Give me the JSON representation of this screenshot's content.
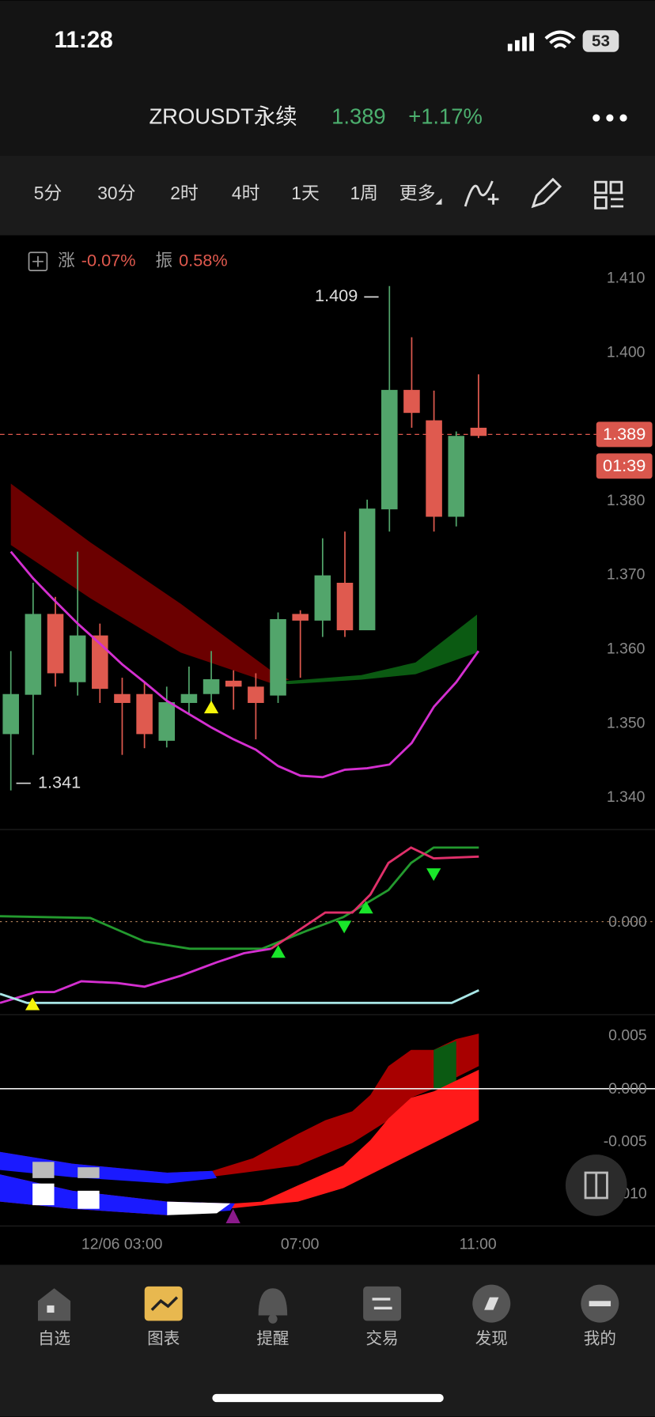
{
  "status_bar": {
    "time": "11:28",
    "battery": "53"
  },
  "header": {
    "symbol": "ZROUSDT永续",
    "price": "1.389",
    "change": "+1.17%"
  },
  "tabs": [
    "5分",
    "30分",
    "2时",
    "4时",
    "1天",
    "1周",
    "更多"
  ],
  "info": {
    "rise_label": "涨",
    "rise": "-0.07%",
    "amp_label": "振",
    "amp": "0.58%"
  },
  "chart": {
    "type": "candlestick",
    "open": [
      1.3486,
      1.3539,
      1.3648,
      1.3556,
      1.3619,
      1.354,
      1.354,
      1.3477,
      1.3528,
      1.354,
      1.3558,
      1.355,
      1.3538,
      1.3648,
      1.3639,
      1.369,
      1.3626,
      1.3789,
      1.395,
      1.3909,
      1.3779,
      1.3899
    ],
    "close": [
      1.354,
      1.3648,
      1.3568,
      1.3619,
      1.3547,
      1.3528,
      1.3486,
      1.3529,
      1.354,
      1.356,
      1.355,
      1.3528,
      1.3641,
      1.3639,
      1.37,
      1.3626,
      1.379,
      1.395,
      1.3919,
      1.3779,
      1.3888,
      1.3888
    ],
    "high": [
      1.3598,
      1.369,
      1.3671,
      1.3732,
      1.3635,
      1.3562,
      1.3556,
      1.355,
      1.3577,
      1.3598,
      1.3572,
      1.3568,
      1.365,
      1.3653,
      1.375,
      1.3759,
      1.3802,
      1.409,
      1.4021,
      1.3949,
      1.3894,
      1.3971
    ],
    "low": [
      1.341,
      1.3458,
      1.355,
      1.3538,
      1.3528,
      1.3458,
      1.3467,
      1.3468,
      1.3513,
      1.3525,
      1.3519,
      1.3479,
      1.3528,
      1.3562,
      1.3617,
      1.3617,
      1.3626,
      1.3759,
      1.3899,
      1.3759,
      1.3766,
      1.3885
    ],
    "ma": [
      1.3732,
      1.3696,
      1.3665,
      1.3635,
      1.3608,
      1.358,
      1.3556,
      1.3531,
      1.3513,
      1.3495,
      1.3479,
      1.3465,
      1.3443,
      1.343,
      1.3428,
      1.3438,
      1.344,
      1.3445,
      1.3474,
      1.3523,
      1.3556,
      1.3598
    ],
    "up_color": "#52a56b",
    "down_color": "#df5a4f",
    "ma_color": "#d42fd0",
    "ylim": [
      1.34,
      1.41
    ],
    "yticks": [
      {
        "value": 1.41,
        "label": "1.410"
      },
      {
        "value": 1.4,
        "label": "1.400"
      },
      {
        "value": 1.38,
        "label": "1.380"
      },
      {
        "value": 1.37,
        "label": "1.370"
      },
      {
        "value": 1.36,
        "label": "1.360"
      },
      {
        "value": 1.35,
        "label": "1.350"
      },
      {
        "value": 1.34,
        "label": "1.340"
      }
    ],
    "last_price": {
      "value": 1.389,
      "label": "1.389"
    },
    "countdown": "01:39",
    "high_label": "1.409",
    "low_label": "1.341",
    "time_labels": [
      "12/06 03:00",
      "07:00",
      "11:00"
    ]
  },
  "indicator1": {
    "ticks": [
      "0.000"
    ]
  },
  "indicator2": {
    "ticks": [
      "0.005",
      "0.000",
      "-0.005",
      "-0.010"
    ]
  },
  "nav": [
    "自选",
    "图表",
    "提醒",
    "交易",
    "发现",
    "我的"
  ]
}
